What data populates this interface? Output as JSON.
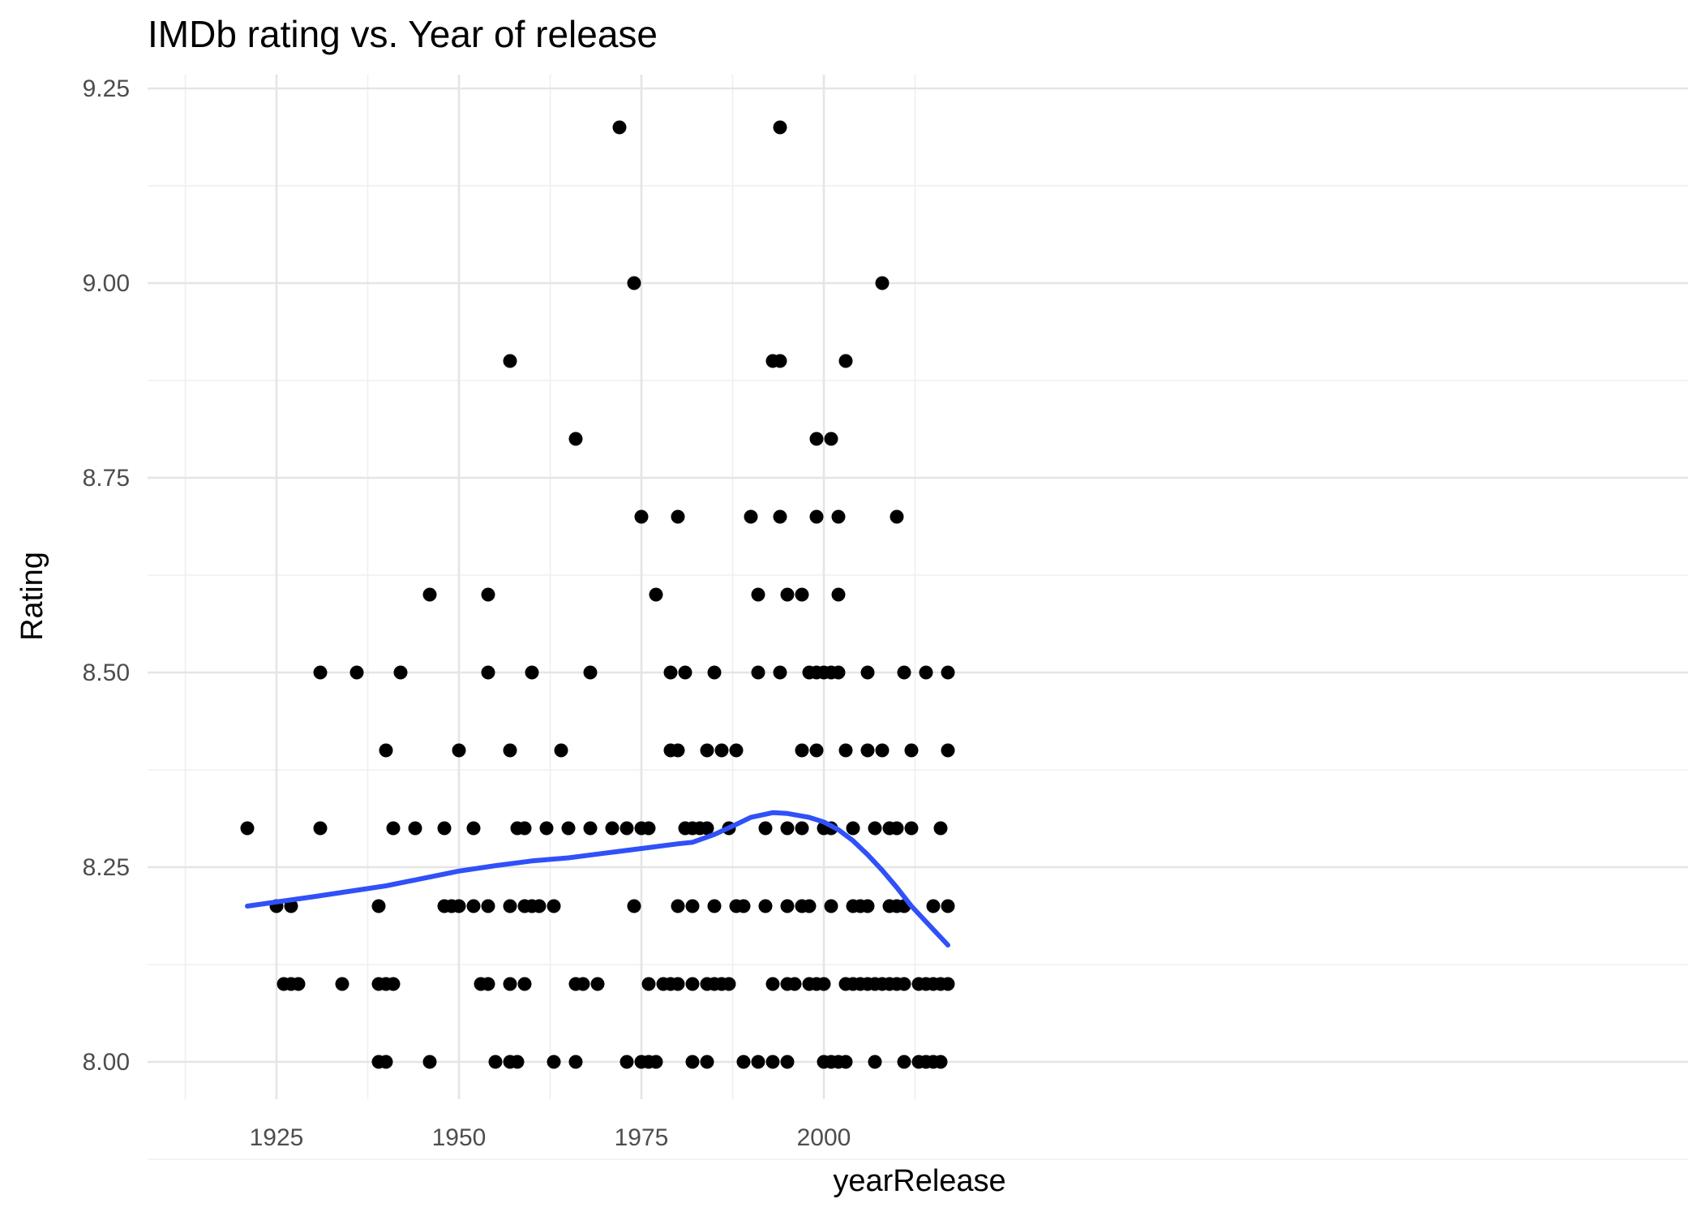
{
  "chart_data": {
    "type": "scatter",
    "title": "IMDb rating vs. Year of release",
    "xlabel": "yearRelease",
    "ylabel": "Rating",
    "xlim": [
      1915,
      2019
    ],
    "ylim": [
      7.95,
      9.25
    ],
    "x_ticks": [
      1925,
      1950,
      1975,
      2000
    ],
    "x_tick_labels": [
      "1925",
      "1950",
      "1975",
      "2000"
    ],
    "y_ticks": [
      8.0,
      8.25,
      8.5,
      8.75,
      9.0,
      9.25
    ],
    "y_tick_labels": [
      "8.00",
      "8.25",
      "8.50",
      "8.75",
      "9.00",
      "9.25"
    ],
    "grid": true,
    "legend": "none",
    "colors": {
      "points": "#000000",
      "smooth_line": "#3050f8",
      "grid": "#e5e5e5"
    },
    "points": [
      [
        1921,
        8.3
      ],
      [
        1925,
        8.2
      ],
      [
        1926,
        8.1
      ],
      [
        1927,
        8.1
      ],
      [
        1927,
        8.2
      ],
      [
        1928,
        8.1
      ],
      [
        1931,
        8.5
      ],
      [
        1931,
        8.3
      ],
      [
        1934,
        8.1
      ],
      [
        1936,
        8.5
      ],
      [
        1939,
        8.2
      ],
      [
        1939,
        8.1
      ],
      [
        1939,
        8.0
      ],
      [
        1940,
        8.4
      ],
      [
        1940,
        8.1
      ],
      [
        1940,
        8.0
      ],
      [
        1941,
        8.3
      ],
      [
        1941,
        8.1
      ],
      [
        1942,
        8.5
      ],
      [
        1944,
        8.3
      ],
      [
        1946,
        8.6
      ],
      [
        1946,
        8.0
      ],
      [
        1948,
        8.3
      ],
      [
        1948,
        8.2
      ],
      [
        1949,
        8.2
      ],
      [
        1950,
        8.4
      ],
      [
        1950,
        8.2
      ],
      [
        1952,
        8.3
      ],
      [
        1952,
        8.2
      ],
      [
        1953,
        8.1
      ],
      [
        1954,
        8.6
      ],
      [
        1954,
        8.5
      ],
      [
        1954,
        8.2
      ],
      [
        1954,
        8.1
      ],
      [
        1955,
        8.0
      ],
      [
        1957,
        8.9
      ],
      [
        1957,
        8.4
      ],
      [
        1957,
        8.2
      ],
      [
        1957,
        8.1
      ],
      [
        1957,
        8.0
      ],
      [
        1958,
        8.3
      ],
      [
        1958,
        8.0
      ],
      [
        1959,
        8.3
      ],
      [
        1959,
        8.2
      ],
      [
        1959,
        8.1
      ],
      [
        1960,
        8.5
      ],
      [
        1960,
        8.2
      ],
      [
        1961,
        8.2
      ],
      [
        1962,
        8.3
      ],
      [
        1963,
        8.2
      ],
      [
        1963,
        8.0
      ],
      [
        1964,
        8.4
      ],
      [
        1965,
        8.3
      ],
      [
        1966,
        8.8
      ],
      [
        1966,
        8.1
      ],
      [
        1966,
        8.0
      ],
      [
        1967,
        8.1
      ],
      [
        1968,
        8.5
      ],
      [
        1968,
        8.3
      ],
      [
        1969,
        8.1
      ],
      [
        1971,
        8.3
      ],
      [
        1972,
        9.2
      ],
      [
        1973,
        8.3
      ],
      [
        1973,
        8.0
      ],
      [
        1974,
        9.0
      ],
      [
        1974,
        8.2
      ],
      [
        1975,
        8.7
      ],
      [
        1975,
        8.3
      ],
      [
        1975,
        8.0
      ],
      [
        1976,
        8.3
      ],
      [
        1976,
        8.1
      ],
      [
        1976,
        8.0
      ],
      [
        1977,
        8.6
      ],
      [
        1977,
        8.0
      ],
      [
        1978,
        8.1
      ],
      [
        1979,
        8.5
      ],
      [
        1979,
        8.4
      ],
      [
        1979,
        8.1
      ],
      [
        1980,
        8.7
      ],
      [
        1980,
        8.4
      ],
      [
        1980,
        8.2
      ],
      [
        1980,
        8.1
      ],
      [
        1981,
        8.5
      ],
      [
        1981,
        8.3
      ],
      [
        1982,
        8.3
      ],
      [
        1982,
        8.2
      ],
      [
        1982,
        8.1
      ],
      [
        1982,
        8.0
      ],
      [
        1983,
        8.3
      ],
      [
        1984,
        8.4
      ],
      [
        1984,
        8.3
      ],
      [
        1984,
        8.1
      ],
      [
        1984,
        8.0
      ],
      [
        1985,
        8.5
      ],
      [
        1985,
        8.2
      ],
      [
        1985,
        8.1
      ],
      [
        1986,
        8.4
      ],
      [
        1986,
        8.1
      ],
      [
        1987,
        8.3
      ],
      [
        1987,
        8.1
      ],
      [
        1988,
        8.4
      ],
      [
        1988,
        8.2
      ],
      [
        1989,
        8.2
      ],
      [
        1989,
        8.0
      ],
      [
        1990,
        8.7
      ],
      [
        1991,
        8.6
      ],
      [
        1991,
        8.5
      ],
      [
        1991,
        8.0
      ],
      [
        1992,
        8.3
      ],
      [
        1992,
        8.2
      ],
      [
        1993,
        8.9
      ],
      [
        1993,
        8.1
      ],
      [
        1993,
        8.0
      ],
      [
        1994,
        9.2
      ],
      [
        1994,
        8.9
      ],
      [
        1994,
        8.7
      ],
      [
        1994,
        8.5
      ],
      [
        1995,
        8.6
      ],
      [
        1995,
        8.3
      ],
      [
        1995,
        8.2
      ],
      [
        1995,
        8.1
      ],
      [
        1995,
        8.0
      ],
      [
        1996,
        8.1
      ],
      [
        1997,
        8.6
      ],
      [
        1997,
        8.4
      ],
      [
        1997,
        8.3
      ],
      [
        1997,
        8.2
      ],
      [
        1998,
        8.5
      ],
      [
        1998,
        8.2
      ],
      [
        1998,
        8.1
      ],
      [
        1999,
        8.8
      ],
      [
        1999,
        8.7
      ],
      [
        1999,
        8.5
      ],
      [
        1999,
        8.4
      ],
      [
        1999,
        8.1
      ],
      [
        2000,
        8.5
      ],
      [
        2000,
        8.3
      ],
      [
        2000,
        8.1
      ],
      [
        2000,
        8.0
      ],
      [
        2001,
        8.8
      ],
      [
        2001,
        8.5
      ],
      [
        2001,
        8.3
      ],
      [
        2001,
        8.2
      ],
      [
        2001,
        8.0
      ],
      [
        2002,
        8.7
      ],
      [
        2002,
        8.6
      ],
      [
        2002,
        8.5
      ],
      [
        2002,
        8.0
      ],
      [
        2003,
        8.9
      ],
      [
        2003,
        8.4
      ],
      [
        2003,
        8.1
      ],
      [
        2003,
        8.0
      ],
      [
        2004,
        8.3
      ],
      [
        2004,
        8.2
      ],
      [
        2004,
        8.1
      ],
      [
        2005,
        8.2
      ],
      [
        2005,
        8.1
      ],
      [
        2006,
        8.5
      ],
      [
        2006,
        8.4
      ],
      [
        2006,
        8.2
      ],
      [
        2006,
        8.1
      ],
      [
        2007,
        8.3
      ],
      [
        2007,
        8.1
      ],
      [
        2007,
        8.0
      ],
      [
        2008,
        9.0
      ],
      [
        2008,
        8.4
      ],
      [
        2008,
        8.1
      ],
      [
        2009,
        8.3
      ],
      [
        2009,
        8.2
      ],
      [
        2009,
        8.1
      ],
      [
        2010,
        8.7
      ],
      [
        2010,
        8.3
      ],
      [
        2010,
        8.2
      ],
      [
        2010,
        8.1
      ],
      [
        2011,
        8.5
      ],
      [
        2011,
        8.2
      ],
      [
        2011,
        8.1
      ],
      [
        2011,
        8.0
      ],
      [
        2012,
        8.4
      ],
      [
        2012,
        8.3
      ],
      [
        2013,
        8.1
      ],
      [
        2013,
        8.0
      ],
      [
        2014,
        8.5
      ],
      [
        2014,
        8.1
      ],
      [
        2014,
        8.0
      ],
      [
        2015,
        8.2
      ],
      [
        2015,
        8.1
      ],
      [
        2015,
        8.0
      ],
      [
        2016,
        8.3
      ],
      [
        2016,
        8.1
      ],
      [
        2016,
        8.0
      ],
      [
        2017,
        8.5
      ],
      [
        2017,
        8.4
      ],
      [
        2017,
        8.2
      ],
      [
        2017,
        8.1
      ]
    ],
    "smooth_line": [
      [
        1921,
        8.2
      ],
      [
        1930,
        8.212
      ],
      [
        1940,
        8.226
      ],
      [
        1950,
        8.245
      ],
      [
        1955,
        8.252
      ],
      [
        1960,
        8.258
      ],
      [
        1965,
        8.262
      ],
      [
        1970,
        8.268
      ],
      [
        1975,
        8.274
      ],
      [
        1980,
        8.28
      ],
      [
        1982,
        8.282
      ],
      [
        1985,
        8.292
      ],
      [
        1988,
        8.305
      ],
      [
        1990,
        8.314
      ],
      [
        1993,
        8.32
      ],
      [
        1995,
        8.319
      ],
      [
        1998,
        8.314
      ],
      [
        2000,
        8.308
      ],
      [
        2002,
        8.298
      ],
      [
        2004,
        8.284
      ],
      [
        2006,
        8.266
      ],
      [
        2008,
        8.246
      ],
      [
        2010,
        8.224
      ],
      [
        2012,
        8.2
      ],
      [
        2014,
        8.18
      ],
      [
        2017,
        8.15
      ]
    ]
  }
}
